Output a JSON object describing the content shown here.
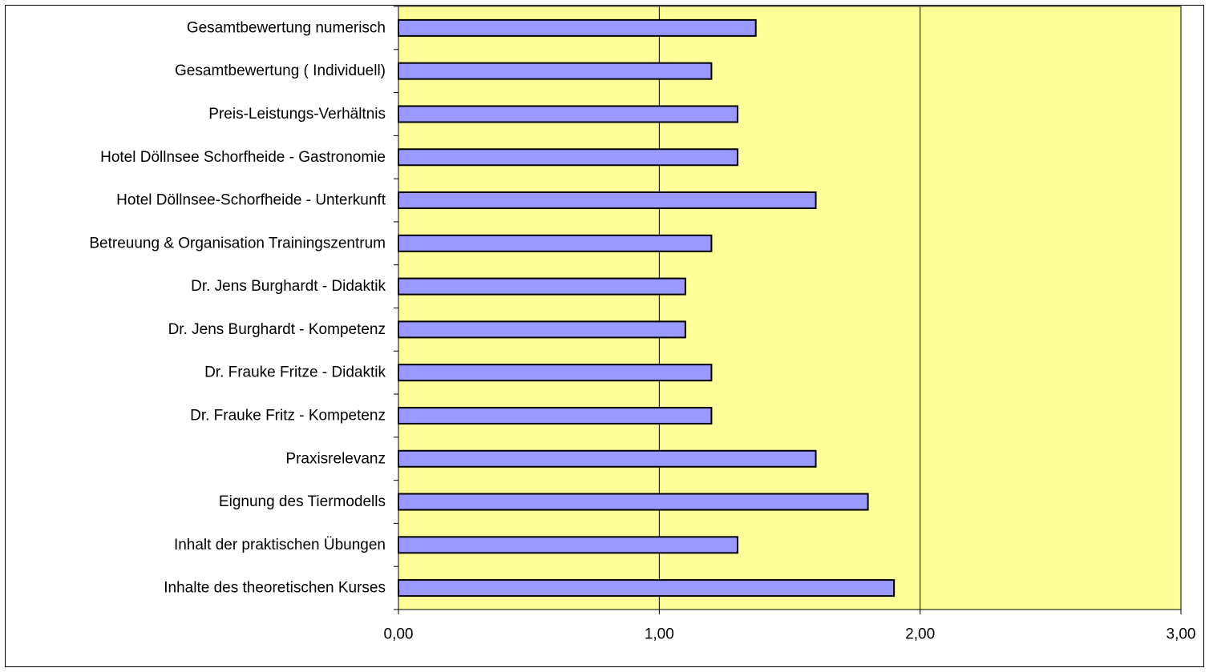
{
  "chart_data": {
    "type": "bar",
    "orientation": "horizontal",
    "title": "",
    "xlabel": "",
    "ylabel": "",
    "xlim": [
      0,
      3
    ],
    "x_ticks": [
      0,
      1,
      2,
      3
    ],
    "x_tick_labels": [
      "0,00",
      "1,00",
      "2,00",
      "3,00"
    ],
    "grid": true,
    "legend": "none",
    "categories": [
      "Gesamtbewertung numerisch",
      "Gesamtbewertung ( Individuell)",
      "Preis-Leistungs-Verhältnis",
      "Hotel Döllnsee Schorfheide - Gastronomie",
      "Hotel Döllnsee-Schorfheide - Unterkunft",
      "Betreuung & Organisation Trainingszentrum",
      "Dr. Jens Burghardt  - Didaktik",
      "Dr. Jens Burghardt - Kompetenz",
      "Dr. Frauke Fritze  - Didaktik",
      "Dr. Frauke Fritz - Kompetenz",
      "Praxisrelevanz",
      "Eignung des Tiermodells",
      "Inhalt der praktischen Übungen",
      "Inhalte des theoretischen Kurses"
    ],
    "values": [
      1.37,
      1.2,
      1.3,
      1.3,
      1.6,
      1.2,
      1.1,
      1.1,
      1.2,
      1.2,
      1.6,
      1.8,
      1.3,
      1.9
    ],
    "colors": {
      "plot_background": "#ffff99",
      "bar_fill": "#9999ff",
      "bar_stroke": "#000000",
      "grid": "#000000"
    }
  }
}
